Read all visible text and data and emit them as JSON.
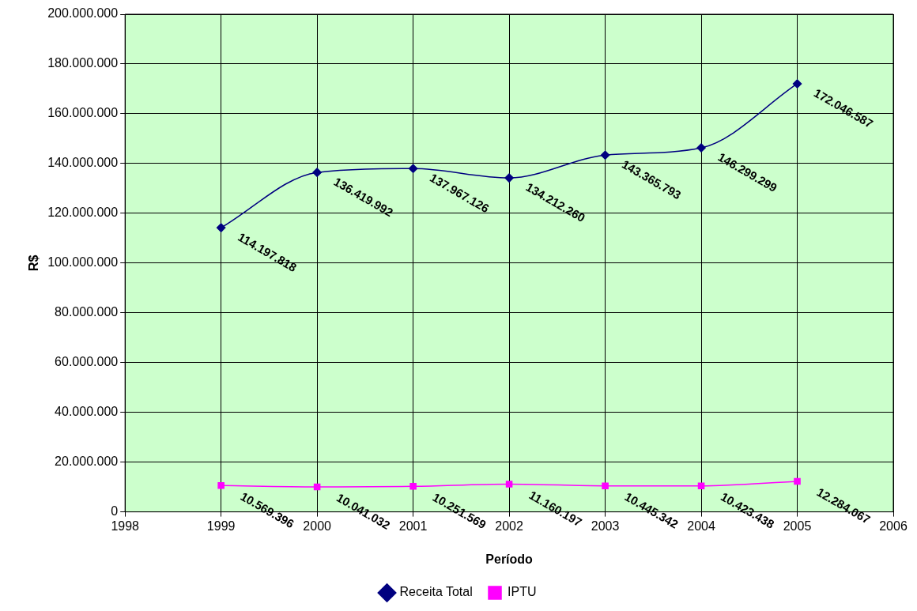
{
  "chart_data": {
    "type": "line",
    "xlabel": "Período",
    "ylabel": "R$",
    "x": [
      1999,
      2000,
      2001,
      2002,
      2003,
      2004,
      2005
    ],
    "series": [
      {
        "name": "Receita Total",
        "color": "#000080",
        "marker": "diamond",
        "values": [
          114197818,
          136419992,
          137967126,
          134212260,
          143365793,
          146299299,
          172046587
        ],
        "value_labels": [
          "114.197.818",
          "136.419.992",
          "137.967.126",
          "134.212.260",
          "143.365.793",
          "146.299.299",
          "172.046.587"
        ]
      },
      {
        "name": "IPTU",
        "color": "#ff00ff",
        "marker": "square",
        "values": [
          10569396,
          10041032,
          10251569,
          11160197,
          10445342,
          10423438,
          12284067
        ],
        "value_labels": [
          "10.569.396",
          "10.041.032",
          "10.251.569",
          "11.160.197",
          "10.445.342",
          "10.423.438",
          "12.284.067"
        ]
      }
    ],
    "xlim": [
      1998,
      2006
    ],
    "xticks": [
      1998,
      1999,
      2000,
      2001,
      2002,
      2003,
      2004,
      2005,
      2006
    ],
    "ylim": [
      0,
      200000000
    ],
    "yticks": [
      0,
      {
        "value": 20000000,
        "label": "20.000.000"
      },
      {
        "value": 40000000,
        "label": "40.000.000"
      },
      {
        "value": 60000000,
        "label": "60.000.000"
      },
      {
        "value": 80000000,
        "label": "80.000.000"
      },
      {
        "value": 100000000,
        "label": "100.000.000"
      },
      {
        "value": 120000000,
        "label": "120.000.000"
      },
      {
        "value": 140000000,
        "label": "140.000.000"
      },
      {
        "value": 160000000,
        "label": "160.000.000"
      },
      {
        "value": 180000000,
        "label": "180.000.000"
      },
      {
        "value": 200000000,
        "label": "200.000.000"
      }
    ],
    "grid": true,
    "legend": "bottom",
    "line_style": "solid"
  }
}
